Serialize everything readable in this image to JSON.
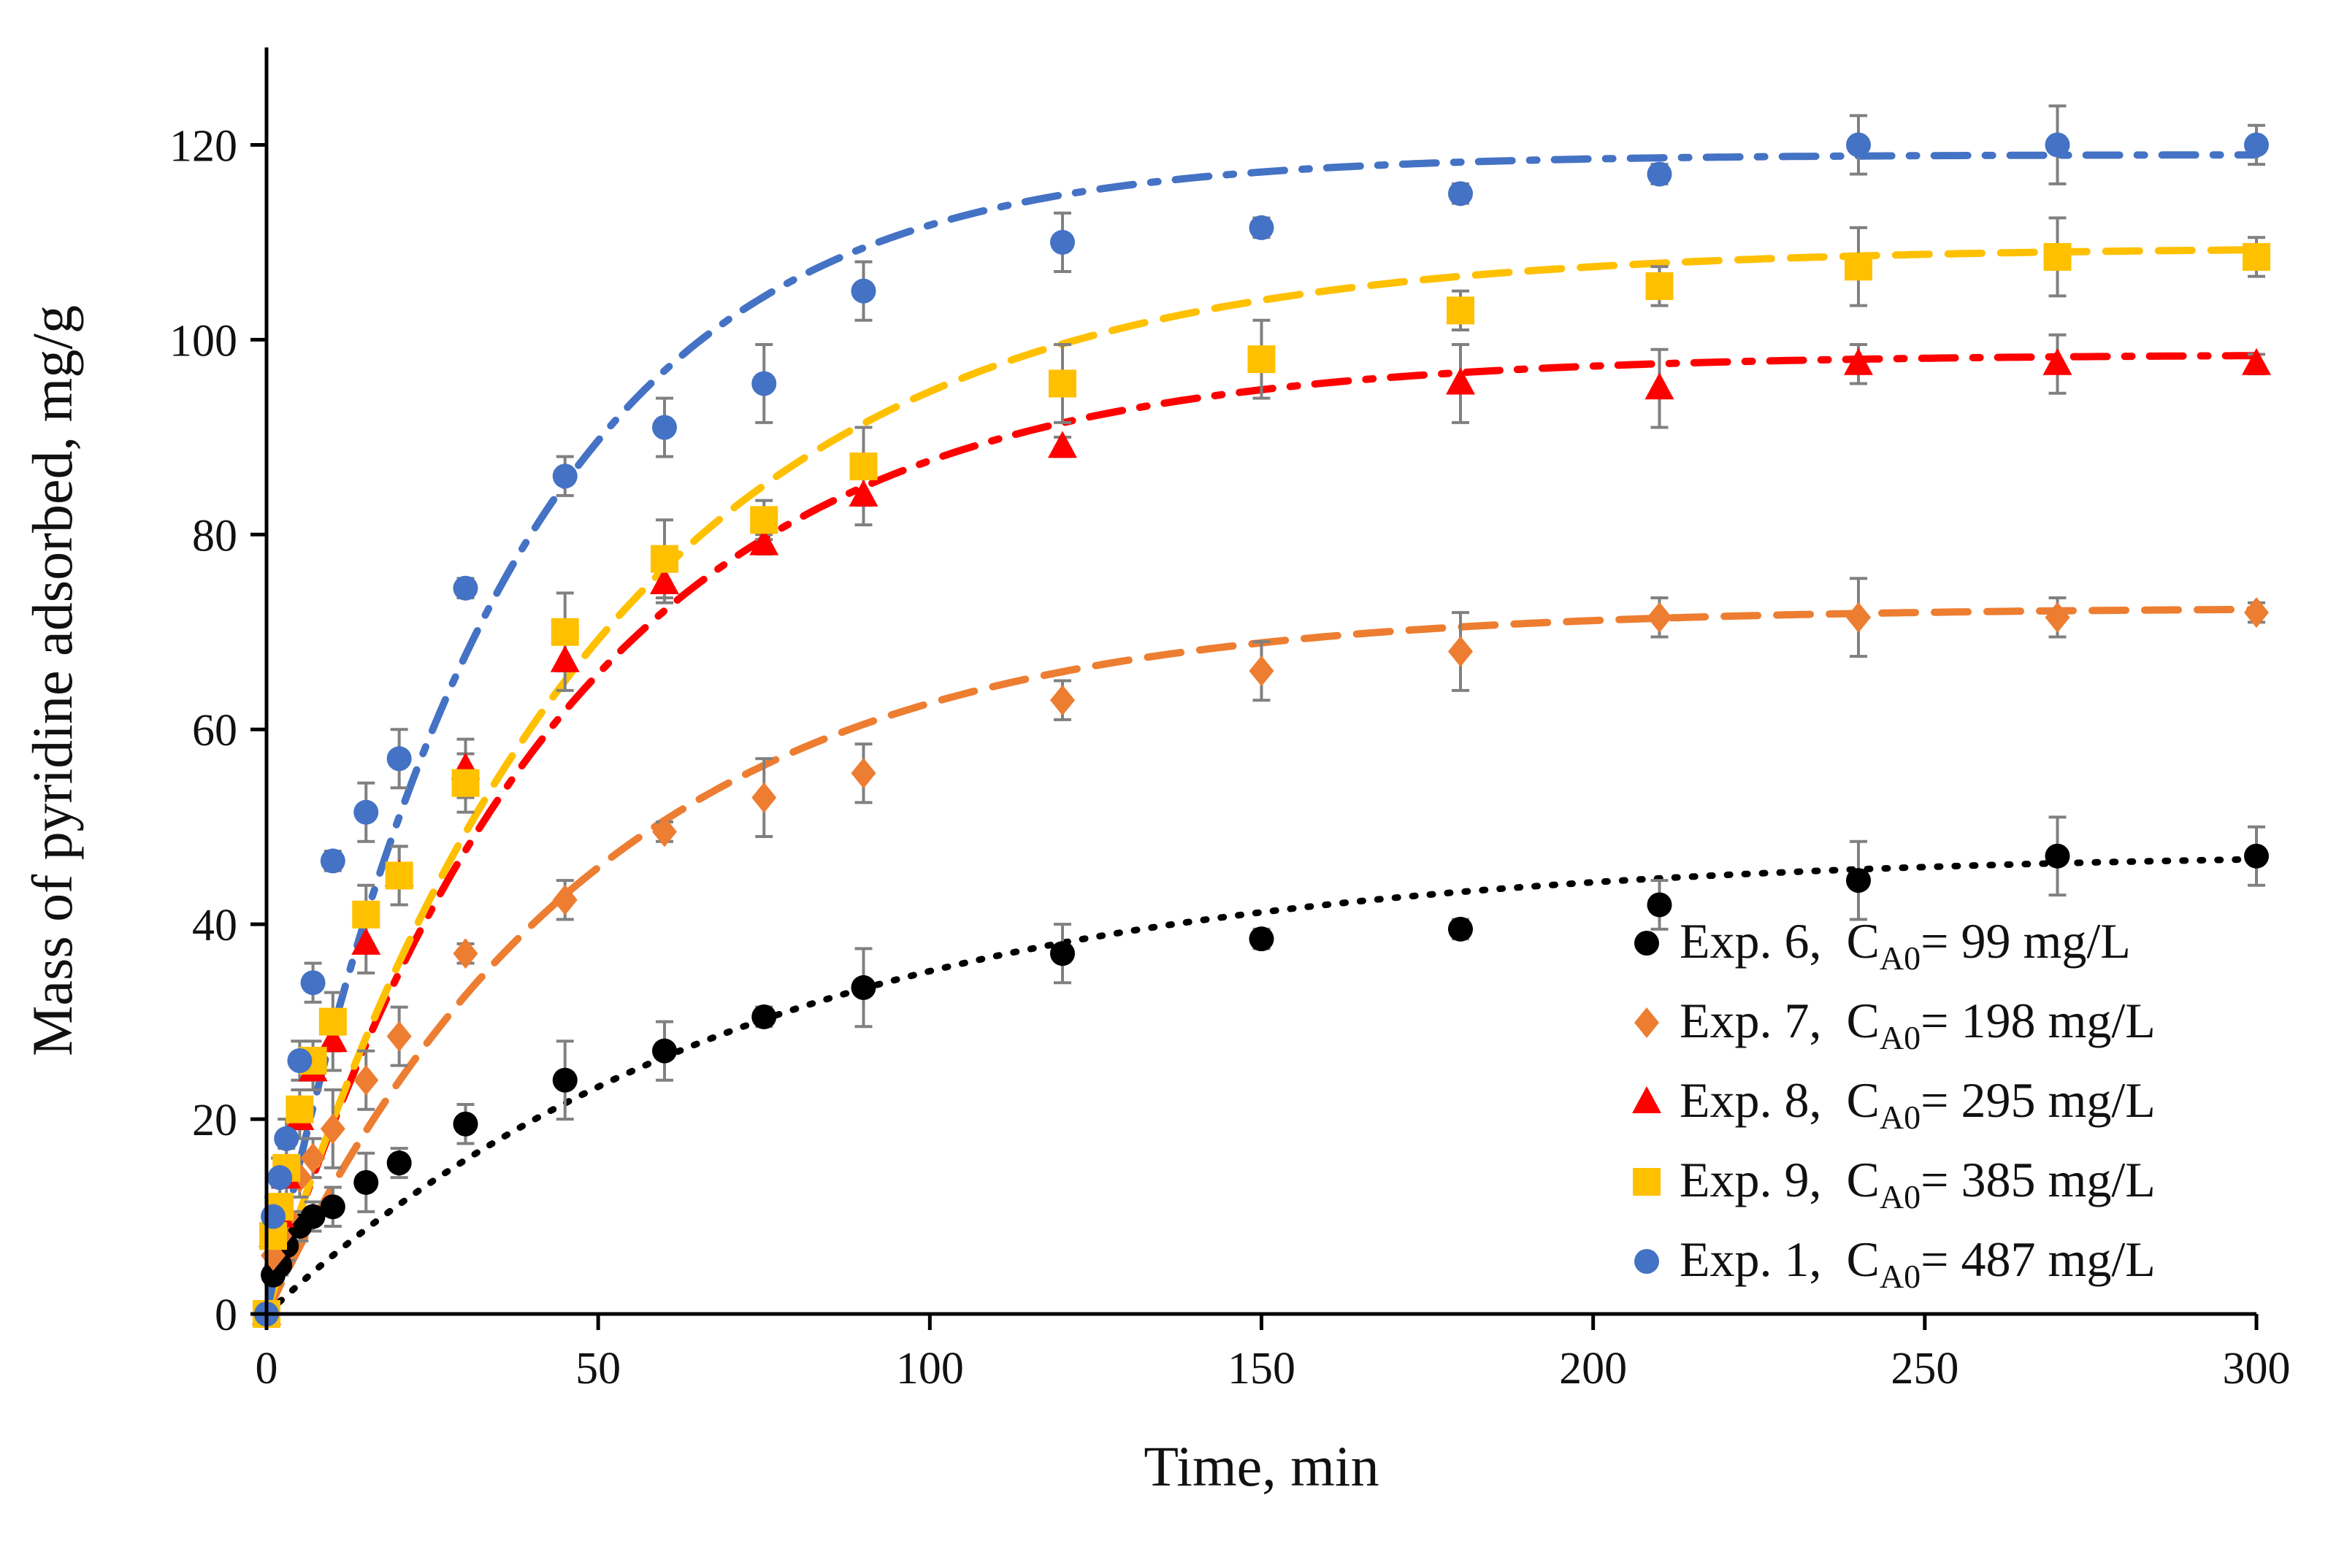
{
  "chart_data": {
    "type": "scatter",
    "title": "",
    "xlabel": "Time, min",
    "ylabel": "Mass of pyridine adsorbed, mg/g",
    "xlim": [
      0,
      300
    ],
    "ylim": [
      0,
      130
    ],
    "x_ticks": [
      0,
      50,
      100,
      150,
      200,
      250,
      300
    ],
    "y_ticks": [
      0,
      20,
      40,
      60,
      80,
      100,
      120
    ],
    "grid": false,
    "legend_position": "bottom-right",
    "series": [
      {
        "name": "Exp. 6, CA0= 99 mg/L",
        "legend": {
          "prefix": "Exp. 6,",
          "c": "C",
          "sub": "A0",
          "suffix": "= 99 mg/L"
        },
        "color": "#000000",
        "marker": "circle",
        "line_style": "dotted",
        "x": [
          0,
          1,
          2,
          3,
          5,
          7,
          10,
          15,
          20,
          30,
          45,
          60,
          75,
          90,
          120,
          150,
          180,
          210,
          240,
          270,
          300
        ],
        "y": [
          0,
          4,
          5,
          7,
          9,
          10,
          11,
          13.5,
          15.5,
          19.5,
          24,
          27,
          30.5,
          33.5,
          37,
          38.5,
          39.5,
          42,
          44.5,
          47,
          47
        ],
        "error": [
          0,
          1,
          1,
          1.5,
          1.5,
          1.5,
          2,
          3,
          1.5,
          2,
          4,
          3,
          1,
          4,
          3,
          1,
          1,
          2.5,
          4,
          4,
          3
        ],
        "fit": {
          "qe": 47.5,
          "k": 0.0135
        }
      },
      {
        "name": "Exp. 7, CA0= 198 mg/L",
        "legend": {
          "prefix": "Exp. 7,",
          "c": "C",
          "sub": "A0",
          "suffix": "= 198 mg/L"
        },
        "color": "#ED7D31",
        "marker": "diamond",
        "line_style": "dashed",
        "x": [
          0,
          1,
          2,
          3,
          5,
          7,
          10,
          15,
          20,
          30,
          45,
          60,
          75,
          90,
          120,
          150,
          180,
          210,
          240,
          270,
          300
        ],
        "y": [
          0,
          6,
          8,
          10,
          14,
          16,
          19,
          24,
          28.5,
          37,
          42.5,
          49.5,
          53,
          55.5,
          63,
          66,
          68,
          71.5,
          71.5,
          71.5,
          72
        ],
        "error": [
          0,
          1.5,
          2,
          2,
          2,
          2,
          4,
          3,
          3,
          1,
          2,
          1,
          4,
          3,
          2,
          3,
          4,
          2,
          4,
          2,
          1
        ],
        "fit": {
          "qe": 72.5,
          "k": 0.02
        }
      },
      {
        "name": "Exp. 8, CA0= 295 mg/L",
        "legend": {
          "prefix": "Exp. 8,",
          "c": "C",
          "sub": "A0",
          "suffix": "= 295 mg/L"
        },
        "color": "#FF0000",
        "marker": "triangle",
        "line_style": "dash-dot",
        "x": [
          0,
          1,
          2,
          3,
          5,
          7,
          10,
          15,
          20,
          30,
          45,
          60,
          75,
          90,
          120,
          180,
          210,
          240,
          270,
          300
        ],
        "y": [
          0,
          8,
          10,
          14,
          20,
          25,
          28,
          38,
          45,
          56,
          67,
          75,
          79,
          84,
          89,
          95.5,
          95,
          97.5,
          97.5,
          97.5
        ],
        "error": [
          0,
          2,
          2,
          2,
          2,
          2,
          3,
          3,
          3,
          3,
          3,
          2,
          1,
          3,
          1,
          4,
          4,
          2,
          3,
          1
        ],
        "fit": {
          "qe": 98.5,
          "k": 0.022
        }
      },
      {
        "name": "Exp. 9, CA0= 385 mg/L",
        "legend": {
          "prefix": "Exp. 9,",
          "c": "C",
          "sub": "A0",
          "suffix": "= 385 mg/L"
        },
        "color": "#FFC000",
        "marker": "square",
        "line_style": "dashed",
        "x": [
          0,
          1,
          2,
          3,
          5,
          7,
          10,
          15,
          20,
          30,
          45,
          60,
          75,
          90,
          120,
          150,
          180,
          210,
          240,
          270,
          300
        ],
        "y": [
          0,
          8,
          11,
          15,
          21,
          26,
          30,
          41,
          45,
          54.5,
          70,
          77.5,
          81.5,
          87,
          95.5,
          98,
          103,
          105.5,
          107.5,
          108.5,
          108.5
        ],
        "error": [
          0,
          2,
          2,
          2,
          2,
          2,
          3,
          3,
          3,
          3,
          4,
          4,
          2,
          4,
          4,
          4,
          2,
          2,
          4,
          4,
          2
        ],
        "fit": {
          "qe": 109.5,
          "k": 0.02
        }
      },
      {
        "name": "Exp. 1, CA0= 487 mg/L",
        "legend": {
          "prefix": "Exp. 1,",
          "c": "C",
          "sub": "A0",
          "suffix": "= 487 mg/L"
        },
        "color": "#4472C4",
        "marker": "circle",
        "line_style": "dash-dot",
        "x": [
          0,
          1,
          2,
          3,
          5,
          7,
          10,
          15,
          20,
          30,
          45,
          60,
          75,
          90,
          120,
          150,
          180,
          210,
          240,
          270,
          300
        ],
        "y": [
          0,
          10,
          14,
          18,
          26,
          34,
          46.5,
          51.5,
          57,
          74.5,
          86,
          91,
          95.5,
          105,
          110,
          111.5,
          115,
          117,
          120,
          120,
          120
        ],
        "error": [
          0,
          2,
          2,
          2,
          2,
          2,
          1,
          3,
          3,
          1,
          2,
          3,
          4,
          3,
          3,
          1,
          1,
          1,
          3,
          4,
          2
        ],
        "fit": {
          "qe": 119,
          "k": 0.028
        }
      }
    ]
  }
}
